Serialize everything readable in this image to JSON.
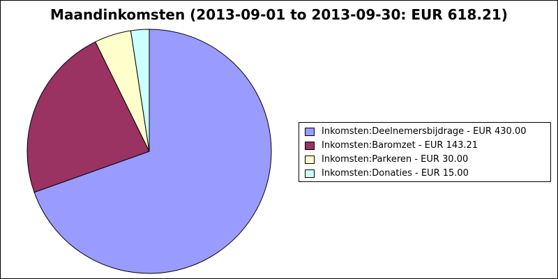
{
  "chart_data": {
    "type": "pie",
    "title": "Maandinkomsten (2013-09-01 to 2013-09-30: EUR 618.21)",
    "categories": [
      "Inkomsten:Deelnemersbijdrage",
      "Inkomsten:Baromzet",
      "Inkomsten:Parkeren",
      "Inkomsten:Donaties"
    ],
    "values": [
      430.0,
      143.21,
      30.0,
      15.0
    ],
    "legend_labels": [
      "Inkomsten:Deelnemersbijdrage - EUR 430.00",
      "Inkomsten:Baromzet - EUR 143.21",
      "Inkomsten:Parkeren - EUR 30.00",
      "Inkomsten:Donaties - EUR 15.00"
    ],
    "colors": [
      "#9a9bff",
      "#9a3262",
      "#ffffcc",
      "#ccffff"
    ],
    "start": "12 o'clock, clockwise",
    "legend_position": "right"
  }
}
